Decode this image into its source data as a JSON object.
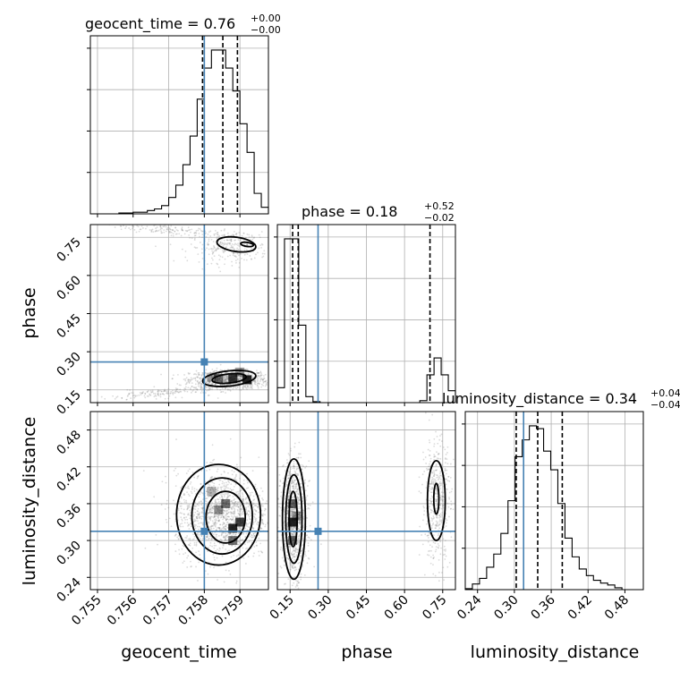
{
  "chart_data": {
    "type": "corner",
    "parameters": [
      "geocent_time",
      "phase",
      "luminosity_distance"
    ],
    "truth": {
      "geocent_time": 0.758,
      "phase": 0.26,
      "luminosity_distance": 0.315
    },
    "truth_color": "#4682b4",
    "titles": {
      "geocent_time": {
        "label": "geocent_time = 0.76",
        "sup": "+0.00",
        "sub": "−0.00"
      },
      "phase": {
        "label": "phase = 0.18",
        "sup": "+0.52",
        "sub": "−0.02"
      },
      "luminosity_distance": {
        "label": "luminosity_distance = 0.34",
        "sup": "+0.04",
        "sub": "−0.04"
      }
    },
    "axes": {
      "geocent_time": {
        "range": [
          0.7548,
          0.7598
        ],
        "ticks": [
          "0.755",
          "0.756",
          "0.757",
          "0.758",
          "0.759"
        ],
        "xlabel": "geocent_time"
      },
      "phase": {
        "range": [
          0.1,
          0.8
        ],
        "ticks": [
          "0.15",
          "0.30",
          "0.45",
          "0.60",
          "0.75"
        ],
        "xlabel": "phase",
        "ylabel": "phase"
      },
      "luminosity_distance": {
        "range": [
          0.22,
          0.51
        ],
        "ticks": [
          "0.24",
          "0.30",
          "0.36",
          "0.42",
          "0.48"
        ],
        "xlabel": "luminosity_distance",
        "ylabel": "luminosity_distance"
      }
    },
    "histograms": {
      "geocent_time": {
        "edges": [
          0.7548,
          0.755,
          0.7552,
          0.7554,
          0.7556,
          0.7558,
          0.756,
          0.7562,
          0.7564,
          0.7566,
          0.7568,
          0.757,
          0.7572,
          0.7574,
          0.7576,
          0.7578,
          0.758,
          0.7582,
          0.7584,
          0.7586,
          0.7588,
          0.759,
          0.7592,
          0.7594,
          0.7596,
          0.7598
        ],
        "counts": [
          0,
          0,
          0,
          0,
          1,
          1,
          2,
          2,
          4,
          6,
          10,
          20,
          35,
          60,
          95,
          140,
          178,
          200,
          200,
          178,
          150,
          110,
          75,
          25,
          8
        ],
        "quantiles": [
          0.75795,
          0.75852,
          0.75893
        ]
      },
      "phase": {
        "edges": [
          0.1,
          0.128,
          0.156,
          0.184,
          0.212,
          0.24,
          0.268,
          0.296,
          0.324,
          0.352,
          0.38,
          0.408,
          0.436,
          0.464,
          0.492,
          0.52,
          0.548,
          0.576,
          0.604,
          0.632,
          0.66,
          0.688,
          0.716,
          0.744,
          0.772,
          0.8
        ],
        "counts": [
          15,
          165,
          165,
          78,
          6,
          1,
          0,
          0,
          0,
          0,
          0,
          0,
          0,
          0,
          0,
          0,
          0,
          0,
          0,
          0,
          2,
          28,
          45,
          28,
          12
        ],
        "quantiles": [
          0.16,
          0.182,
          0.7
        ]
      },
      "luminosity_distance": {
        "edges": [
          0.22,
          0.2316,
          0.2432,
          0.2548,
          0.2664,
          0.278,
          0.2896,
          0.3012,
          0.3128,
          0.3244,
          0.336,
          0.3476,
          0.3592,
          0.3708,
          0.3824,
          0.394,
          0.4056,
          0.4172,
          0.4288,
          0.4404,
          0.452,
          0.4636,
          0.4752,
          0.4868,
          0.4984,
          0.51
        ],
        "counts": [
          1,
          6,
          12,
          24,
          38,
          60,
          95,
          142,
          160,
          175,
          172,
          148,
          128,
          92,
          55,
          35,
          22,
          15,
          10,
          7,
          5,
          2,
          0,
          0,
          0
        ],
        "quantiles": [
          0.303,
          0.338,
          0.378
        ]
      }
    }
  }
}
